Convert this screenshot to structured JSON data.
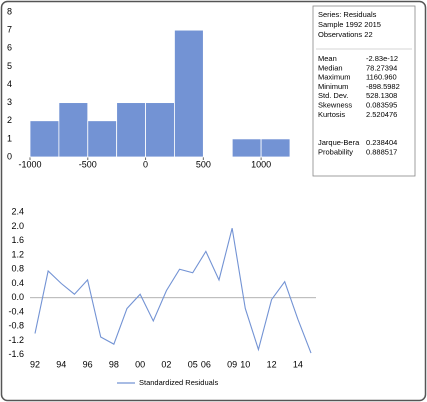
{
  "chart_data": [
    {
      "type": "histogram",
      "color": "#7393d4",
      "bins": [
        -1000,
        -750,
        -500,
        -250,
        0,
        250,
        500,
        750,
        1000,
        1250
      ],
      "values": [
        2,
        3,
        2,
        3,
        3,
        7,
        0,
        1,
        1
      ],
      "xlim": [
        -1000,
        1250
      ],
      "xticks": [
        -1000,
        -500,
        0,
        500,
        1000
      ],
      "ylim": [
        0,
        8
      ],
      "yticks": [
        0,
        1,
        2,
        3,
        4,
        5,
        6,
        7,
        8
      ]
    },
    {
      "type": "line",
      "categories": [
        "92",
        null,
        "94",
        null,
        "96",
        null,
        "98",
        null,
        "00",
        null,
        "02",
        null,
        "05",
        "06",
        null,
        "09",
        "10",
        null,
        "12",
        null,
        "14",
        null
      ],
      "series": [
        {
          "name": "Standardized Residuals",
          "color": "#7393d4",
          "values": [
            -1.0,
            0.75,
            0.4,
            0.1,
            0.5,
            -1.1,
            -1.3,
            -0.3,
            0.1,
            -0.65,
            0.2,
            0.8,
            0.7,
            1.3,
            0.5,
            1.95,
            -0.3,
            -1.45,
            -0.05,
            0.45,
            -0.6,
            -1.55
          ]
        }
      ],
      "ylim": [
        -1.8,
        2.6
      ],
      "yticks": [
        2.4,
        {
          "value": 2,
          "label": "2.0"
        },
        1.6,
        1.2,
        0.8,
        0.4,
        {
          "value": 0,
          "label": "0.0"
        },
        -0.4,
        -0.8,
        -1.2,
        -1.6
      ]
    }
  ],
  "stats_box": {
    "header": [
      "Series: Residuals",
      "Sample 1992 2015",
      "Observations 22"
    ],
    "rows": [
      [
        "Mean",
        "-2.83e-12"
      ],
      [
        "Median",
        "78.27394"
      ],
      [
        "Maximum",
        "1160.960"
      ],
      [
        "Minimum",
        "-898.5982"
      ],
      [
        "Std. Dev.",
        "528.1308"
      ],
      [
        "Skewness",
        "0.083595"
      ],
      [
        "Kurtosis",
        "2.520476"
      ]
    ],
    "tests": [
      [
        "Jarque-Bera",
        "0.238404"
      ],
      [
        "Probability",
        "0.888517"
      ]
    ]
  }
}
